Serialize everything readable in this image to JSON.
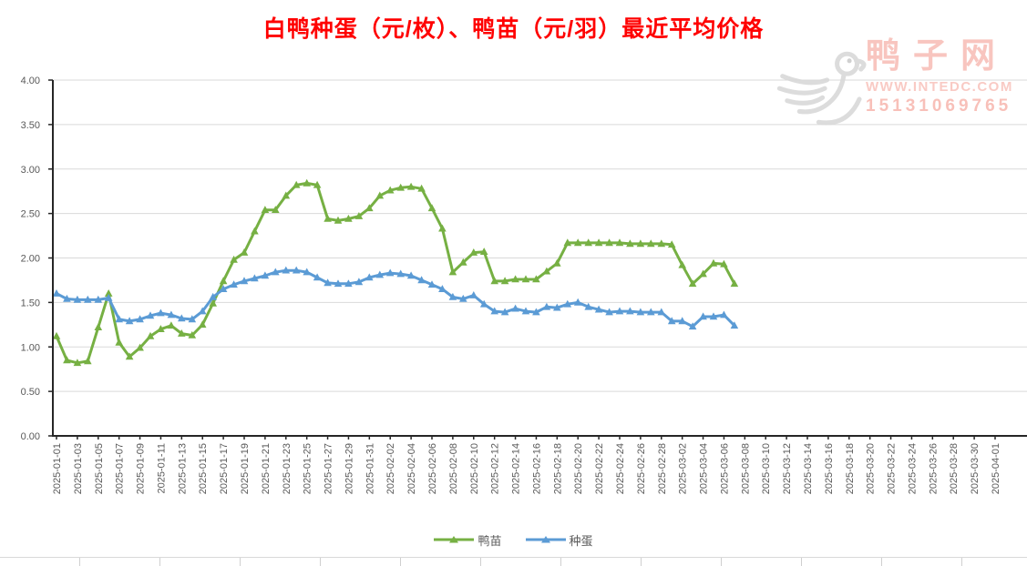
{
  "title": "白鸭种蛋（元/枚）、鸭苗（元/羽）最近平均价格",
  "watermark": {
    "site_name": "鸭子网",
    "site_url": "WWW.INTEDC.COM",
    "phone": "15131069765",
    "logo": "duck-logo"
  },
  "chart_data": {
    "type": "line",
    "title": "白鸭种蛋（元/枚）、鸭苗（元/羽）最近平均价格",
    "xlabel": "",
    "ylabel": "",
    "ylim": [
      0,
      4
    ],
    "grid": true,
    "legend_position": "bottom",
    "y_ticks": [
      0,
      0.5,
      1,
      1.5,
      2,
      2.5,
      3,
      3.5,
      4
    ],
    "x_axis_total_days": 90,
    "x_tick_labels": [
      "2025-01-01",
      "2025-01-03",
      "2025-01-05",
      "2025-01-07",
      "2025-01-09",
      "2025-01-11",
      "2025-01-13",
      "2025-01-15",
      "2025-01-17",
      "2025-01-19",
      "2025-01-21",
      "2025-01-23",
      "2025-01-25",
      "2025-01-27",
      "2025-01-29",
      "2025-01-31",
      "2025-02-02",
      "2025-02-04",
      "2025-02-06",
      "2025-02-08",
      "2025-02-10",
      "2025-02-12",
      "2025-02-14",
      "2025-02-16",
      "2025-02-18",
      "2025-02-20",
      "2025-02-22",
      "2025-02-24",
      "2025-02-26",
      "2025-02-28",
      "2025-03-02",
      "2025-03-04",
      "2025-03-06",
      "2025-03-08",
      "2025-03-10",
      "2025-03-12",
      "2025-03-14",
      "2025-03-16",
      "2025-03-18",
      "2025-03-20",
      "2025-03-22",
      "2025-03-24",
      "2025-03-26",
      "2025-03-28",
      "2025-03-30",
      "2025-04-01"
    ],
    "dates": [
      "2025-01-01",
      "2025-01-02",
      "2025-01-03",
      "2025-01-04",
      "2025-01-05",
      "2025-01-06",
      "2025-01-07",
      "2025-01-08",
      "2025-01-09",
      "2025-01-10",
      "2025-01-11",
      "2025-01-12",
      "2025-01-13",
      "2025-01-14",
      "2025-01-15",
      "2025-01-16",
      "2025-01-17",
      "2025-01-18",
      "2025-01-19",
      "2025-01-20",
      "2025-01-21",
      "2025-01-22",
      "2025-01-23",
      "2025-01-24",
      "2025-01-25",
      "2025-01-26",
      "2025-01-27",
      "2025-01-28",
      "2025-01-29",
      "2025-01-30",
      "2025-01-31",
      "2025-02-01",
      "2025-02-02",
      "2025-02-03",
      "2025-02-04",
      "2025-02-05",
      "2025-02-06",
      "2025-02-07",
      "2025-02-08",
      "2025-02-09",
      "2025-02-10",
      "2025-02-11",
      "2025-02-12",
      "2025-02-13",
      "2025-02-14",
      "2025-02-15",
      "2025-02-16",
      "2025-02-17",
      "2025-02-18",
      "2025-02-19",
      "2025-02-20",
      "2025-02-21",
      "2025-02-22",
      "2025-02-23",
      "2025-02-24",
      "2025-02-25",
      "2025-02-26",
      "2025-02-27",
      "2025-02-28",
      "2025-03-01",
      "2025-03-02",
      "2025-03-03",
      "2025-03-04",
      "2025-03-05",
      "2025-03-06",
      "2025-03-07"
    ],
    "series": [
      {
        "name": "鸭苗",
        "unit": "元/羽",
        "color": "#76b043",
        "marker": "triangle",
        "values": [
          1.12,
          0.85,
          0.82,
          0.84,
          1.22,
          1.6,
          1.05,
          0.89,
          0.99,
          1.12,
          1.2,
          1.24,
          1.15,
          1.13,
          1.25,
          1.49,
          1.74,
          1.98,
          2.06,
          2.3,
          2.54,
          2.54,
          2.7,
          2.82,
          2.84,
          2.82,
          2.44,
          2.42,
          2.44,
          2.47,
          2.56,
          2.7,
          2.76,
          2.79,
          2.8,
          2.78,
          2.56,
          2.33,
          1.84,
          1.95,
          2.06,
          2.07,
          1.74,
          1.74,
          1.76,
          1.76,
          1.76,
          1.85,
          1.94,
          2.17,
          2.17,
          2.17,
          2.17,
          2.17,
          2.17,
          2.16,
          2.16,
          2.16,
          2.16,
          2.15,
          1.92,
          1.71,
          1.82,
          1.94,
          1.93,
          1.71
        ]
      },
      {
        "name": "种蛋",
        "unit": "元/枚",
        "color": "#5b9bd5",
        "marker": "triangle",
        "values": [
          1.6,
          1.54,
          1.53,
          1.53,
          1.53,
          1.55,
          1.31,
          1.29,
          1.31,
          1.35,
          1.38,
          1.36,
          1.32,
          1.31,
          1.4,
          1.56,
          1.65,
          1.7,
          1.74,
          1.77,
          1.8,
          1.84,
          1.86,
          1.86,
          1.84,
          1.78,
          1.72,
          1.71,
          1.71,
          1.73,
          1.78,
          1.81,
          1.83,
          1.82,
          1.8,
          1.75,
          1.7,
          1.65,
          1.56,
          1.54,
          1.58,
          1.48,
          1.4,
          1.39,
          1.43,
          1.4,
          1.39,
          1.45,
          1.44,
          1.48,
          1.5,
          1.45,
          1.42,
          1.39,
          1.4,
          1.4,
          1.39,
          1.39,
          1.39,
          1.29,
          1.29,
          1.23,
          1.34,
          1.34,
          1.36,
          1.24
        ]
      }
    ]
  }
}
